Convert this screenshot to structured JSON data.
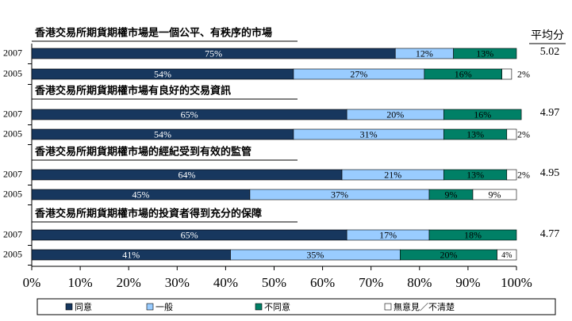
{
  "chart_data": {
    "type": "stacked-barh",
    "categories": [
      "2007",
      "2005",
      "2007",
      "2005",
      "2007",
      "2005",
      "2007",
      "2005"
    ],
    "group_titles": [
      "香港交易所期貨期權市場是一個公平、有秩序的市場",
      "香港交易所期貨期權市場有良好的交易資訊",
      "香港交易所期貨期權市場的經紀受到有效的監管",
      "香港交易所期貨期權市場的投資者得到充分的保障"
    ],
    "average_label": "平均分",
    "averages": [
      5.02,
      4.97,
      4.95,
      4.77
    ],
    "series": [
      {
        "name": "同意",
        "color": "#17375e",
        "values": [
          75,
          54,
          65,
          54,
          64,
          45,
          65,
          41
        ],
        "value_labels": [
          "75%",
          "54%",
          "65%",
          "54%",
          "64%",
          "45%",
          "65%",
          "41%"
        ]
      },
      {
        "name": "一般",
        "color": "#99ccff",
        "values": [
          12,
          27,
          20,
          31,
          21,
          37,
          17,
          35
        ],
        "value_labels": [
          "12%",
          "27%",
          "20%",
          "31%",
          "21%",
          "37%",
          "17%",
          "35%"
        ]
      },
      {
        "name": "不同意",
        "color": "#008066",
        "values": [
          13,
          16,
          16,
          13,
          13,
          9,
          18,
          20
        ],
        "value_labels": [
          "13%",
          "16%",
          "16%",
          "13%",
          "13%",
          "9%",
          "18%",
          "20%"
        ]
      },
      {
        "name": "無意見／不清楚",
        "color": "#ffffff",
        "values": [
          null,
          2,
          null,
          2,
          2,
          9,
          null,
          4
        ],
        "value_labels": [
          null,
          "2%",
          null,
          "2%",
          "2%",
          "9%",
          null,
          "4%"
        ]
      }
    ],
    "xlim": [
      0,
      100
    ],
    "xticks": [
      {
        "value": 0,
        "label": "0%"
      },
      {
        "value": 10,
        "label": "10%"
      },
      {
        "value": 20,
        "label": "20%"
      },
      {
        "value": 30,
        "label": "30%"
      },
      {
        "value": 40,
        "label": "40%"
      },
      {
        "value": 50,
        "label": "50%"
      },
      {
        "value": 60,
        "label": "60%"
      },
      {
        "value": 70,
        "label": "70%"
      },
      {
        "value": 80,
        "label": "80%"
      },
      {
        "value": 90,
        "label": "90%"
      },
      {
        "value": 100,
        "label": "100%"
      }
    ]
  }
}
